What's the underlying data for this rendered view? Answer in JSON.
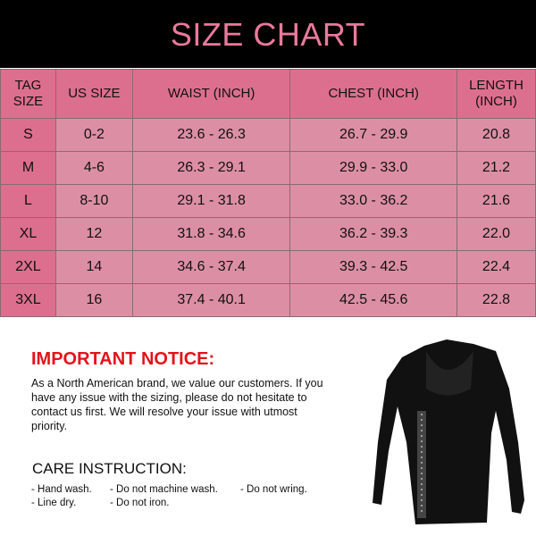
{
  "title": "SIZE CHART",
  "table": {
    "headers": [
      "TAG SIZE",
      "US SIZE",
      "WAIST (INCH)",
      "CHEST (INCH)",
      "LENGTH (INCH)"
    ],
    "rows": [
      [
        "S",
        "0-2",
        "23.6 - 26.3",
        "26.7 - 29.9",
        "20.8"
      ],
      [
        "M",
        "4-6",
        "26.3 - 29.1",
        "29.9 - 33.0",
        "21.2"
      ],
      [
        "L",
        "8-10",
        "29.1 - 31.8",
        "33.0 - 36.2",
        "21.6"
      ],
      [
        "XL",
        "12",
        "31.8 - 34.6",
        "36.2 - 39.3",
        "22.0"
      ],
      [
        "2XL",
        "14",
        "34.6 - 37.4",
        "39.3 - 42.5",
        "22.4"
      ],
      [
        "3XL",
        "16",
        "37.4 - 40.1",
        "42.5 - 45.6",
        "22.8"
      ]
    ]
  },
  "notice": {
    "heading": "IMPORTANT NOTICE:",
    "text": "As a North American brand, we value our customers. If you have any issue with the sizing, please do not hesitate to contact us first. We will resolve your issue with utmost priority."
  },
  "care": {
    "heading": "CARE INSTRUCTION:",
    "items": [
      "- Hand wash.",
      "- Do not machine wash.",
      "- Do not wring.",
      "- Line dry.",
      "- Do not iron."
    ]
  },
  "colors": {
    "title": "#e97a9c",
    "header_bg": "#dd6f8e",
    "cell_bg": "#dc8fa4",
    "notice": "#e3131b"
  }
}
